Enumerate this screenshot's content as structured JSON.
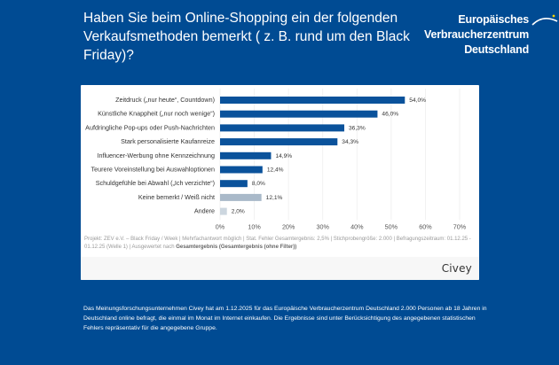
{
  "header": {
    "title": "Haben Sie beim Online-Shopping ein der folgenden Verkaufsmethoden bemerkt ( z. B. rund um den Black Friday)?",
    "logo": {
      "line1": "Europäisches",
      "line2": "Verbraucherzentrum",
      "line3": "Deutschland",
      "icon": "arc-star-icon"
    }
  },
  "colors": {
    "background": "#004b93",
    "bar_primary": "#0a529b",
    "bar_neutral": "#a9b9c9",
    "bar_other": "#ccd6df",
    "grid": "#eeeeee"
  },
  "chart_data": {
    "type": "bar",
    "orientation": "horizontal",
    "title": "Haben Sie beim Online-Shopping ein der folgenden Verkaufsmethoden bemerkt ( z. B. rund um den Black Friday)?",
    "xlabel": "",
    "ylabel": "",
    "xlim": [
      0,
      70
    ],
    "grid": true,
    "categories": [
      "Zeitdruck („nur heute“, Countdown)",
      "Künstliche Knappheit („nur noch wenige“)",
      "Aufdringliche Pop-ups oder Push-Nachrichten",
      "Stark personalisierte Kaufanreize",
      "Influencer-Werbung ohne Kennzeichnung",
      "Teurere Voreinstellung bei Auswahloptionen",
      "Schuldgefühle bei Abwahl („Ich verzichte“)",
      "Keine bemerkt / Weiß nicht",
      "Andere"
    ],
    "values": [
      54.0,
      46.0,
      36.3,
      34.3,
      14.9,
      12.4,
      8.0,
      12.1,
      2.0
    ],
    "value_labels": [
      "54,0%",
      "46,0%",
      "36,3%",
      "34,3%",
      "14,9%",
      "12,4%",
      "8,0%",
      "12,1%",
      "2,0%"
    ],
    "bar_color_groups": [
      "primary",
      "primary",
      "primary",
      "primary",
      "primary",
      "primary",
      "primary",
      "neutral",
      "other"
    ],
    "x_ticks": [
      0,
      10,
      20,
      30,
      40,
      50,
      60,
      70
    ],
    "x_tick_labels": [
      "0%",
      "10%",
      "20%",
      "30%",
      "40%",
      "50%",
      "60%",
      "70%"
    ]
  },
  "card": {
    "meta_text": "Projekt: ZEV e.V. – Black Friday / Week | Mehrfachantwort möglich | Stat. Fehler Gesamtergebnis: 2,5% | Stichprobengröße: 2.000 | Befragungszeitraum: 01.12.25 - 01.12.25 (Welle 1) |",
    "meta_prefix": "Ausgewertet nach",
    "meta_bold": "Gesamtergebnis (Gesamtergebnis (ohne Filter))",
    "brand": "Civey"
  },
  "disclaimer": "Das Meinungsforschungsunternehmen Civey hat am 1.12.2025 für das Europäische Verbraucherzentrum Deutschland 2.000 Personen ab 18 Jahren in Deutschland online befragt, die einmal im Monat im Internet einkaufen. Die Ergebnisse sind unter Berücksichtigung des angegebenen statistischen Fehlers repräsentativ für die angegebene Gruppe."
}
